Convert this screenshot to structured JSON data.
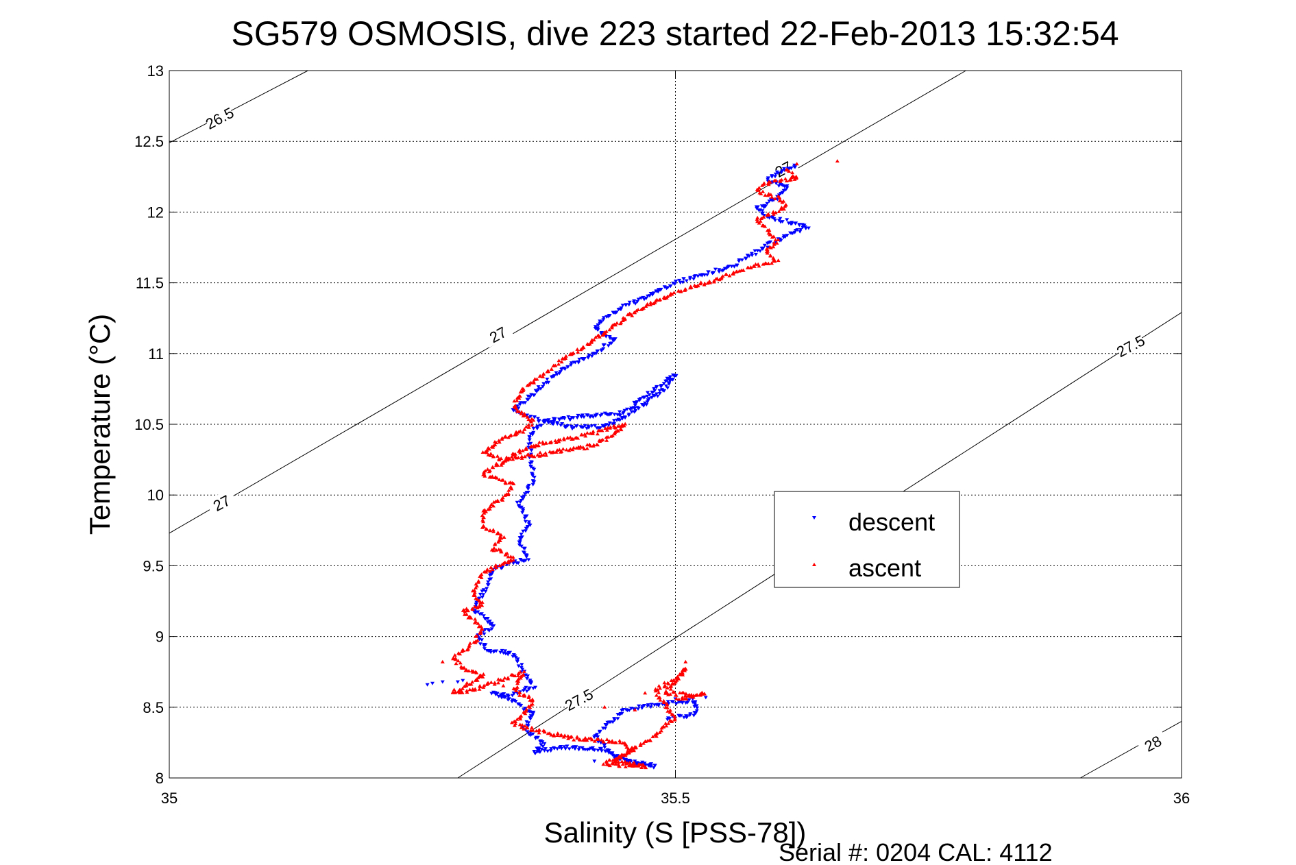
{
  "chart_data": {
    "type": "scatter",
    "title": "SG579 OSMOSIS, dive 223 started 22-Feb-2013 15:32:54",
    "xlabel": "Salinity (S [PSS-78])",
    "ylabel": "Temperature (°C)",
    "xlim": [
      35,
      36
    ],
    "ylim": [
      8,
      13
    ],
    "x_ticks": [
      "35",
      "35.5",
      "36"
    ],
    "y_ticks": [
      "8",
      "8.5",
      "9",
      "9.5",
      "10",
      "10.5",
      "11",
      "11.5",
      "12",
      "12.5",
      "13"
    ],
    "grid": true,
    "legend_position": "right",
    "footer": "Serial #: 0204  CAL: 4112",
    "isopycnals": [
      {
        "label": "26.5",
        "points": [
          [
            35.0,
            12.49
          ],
          [
            35.137,
            13.0
          ]
        ],
        "label_at": [
          35.05,
          12.66
        ],
        "rot": -28
      },
      {
        "label": "27",
        "points": [
          [
            35.0,
            9.73
          ],
          [
            35.787,
            13.0
          ]
        ],
        "label_at": [
          35.052,
          9.94
        ],
        "rot": -28
      },
      {
        "label": "27",
        "points": [
          [
            35.0,
            9.73
          ],
          [
            35.787,
            13.0
          ]
        ],
        "label_at": [
          35.325,
          11.13
        ],
        "rot": -28
      },
      {
        "label": "27",
        "points": [
          [
            35.0,
            9.73
          ],
          [
            35.787,
            13.0
          ]
        ],
        "label_at": [
          35.607,
          12.3
        ],
        "rot": -28
      },
      {
        "label": "27.5",
        "points": [
          [
            35.285,
            8.0
          ],
          [
            36.0,
            11.29
          ]
        ],
        "label_at": [
          35.405,
          8.55
        ],
        "rot": -28
      },
      {
        "label": "27.5",
        "points": [
          [
            35.285,
            8.0
          ],
          [
            36.0,
            11.29
          ]
        ],
        "label_at": [
          35.95,
          11.05
        ],
        "rot": -28
      },
      {
        "label": "28",
        "points": [
          [
            35.9,
            8.0
          ],
          [
            36.0,
            8.4
          ]
        ],
        "label_at": [
          35.972,
          8.24
        ],
        "rot": -28
      }
    ],
    "series": [
      {
        "name": "descent",
        "color": "#0000ff",
        "marker": "triangle-down",
        "path": [
          [
            35.62,
            12.33
          ],
          [
            35.6,
            12.28
          ],
          [
            35.59,
            12.22
          ],
          [
            35.61,
            12.18
          ],
          [
            35.6,
            12.1
          ],
          [
            35.58,
            12.02
          ],
          [
            35.6,
            11.95
          ],
          [
            35.63,
            11.9
          ],
          [
            35.6,
            11.8
          ],
          [
            35.58,
            11.72
          ],
          [
            35.56,
            11.63
          ],
          [
            35.5,
            11.5
          ],
          [
            35.47,
            11.4
          ],
          [
            35.44,
            11.3
          ],
          [
            35.42,
            11.18
          ],
          [
            35.44,
            11.1
          ],
          [
            35.42,
            11.0
          ],
          [
            35.4,
            10.93
          ],
          [
            35.38,
            10.85
          ],
          [
            35.36,
            10.72
          ],
          [
            35.34,
            10.6
          ],
          [
            35.37,
            10.52
          ],
          [
            35.4,
            10.48
          ],
          [
            35.43,
            10.48
          ],
          [
            35.46,
            10.6
          ],
          [
            35.49,
            10.75
          ],
          [
            35.5,
            10.85
          ],
          [
            35.47,
            10.7
          ],
          [
            35.45,
            10.58
          ],
          [
            35.4,
            10.55
          ],
          [
            35.37,
            10.52
          ],
          [
            35.355,
            10.42
          ],
          [
            35.36,
            10.1
          ],
          [
            35.345,
            9.95
          ],
          [
            35.355,
            9.8
          ],
          [
            35.345,
            9.68
          ],
          [
            35.355,
            9.55
          ],
          [
            35.32,
            9.48
          ],
          [
            35.31,
            9.3
          ],
          [
            35.3,
            9.2
          ],
          [
            35.32,
            9.08
          ],
          [
            35.305,
            9.0
          ],
          [
            35.315,
            8.9
          ],
          [
            35.34,
            8.88
          ],
          [
            35.35,
            8.75
          ],
          [
            35.36,
            8.65
          ],
          [
            35.335,
            8.58
          ],
          [
            35.32,
            8.6
          ],
          [
            35.34,
            8.55
          ],
          [
            35.36,
            8.45
          ],
          [
            35.35,
            8.35
          ],
          [
            35.37,
            8.25
          ],
          [
            35.36,
            8.18
          ],
          [
            35.39,
            8.22
          ],
          [
            35.43,
            8.2
          ],
          [
            35.46,
            8.1
          ],
          [
            35.48,
            8.08
          ],
          [
            35.44,
            8.15
          ],
          [
            35.42,
            8.3
          ],
          [
            35.45,
            8.48
          ],
          [
            35.48,
            8.52
          ],
          [
            35.52,
            8.55
          ],
          [
            35.52,
            8.45
          ],
          [
            35.49,
            8.42
          ]
        ],
        "extra_points": [
          [
            35.26,
            8.67
          ],
          [
            35.27,
            8.68
          ],
          [
            35.255,
            8.66
          ],
          [
            35.285,
            8.68
          ],
          [
            35.29,
            8.69
          ],
          [
            35.46,
            8.12
          ],
          [
            35.42,
            8.12
          ],
          [
            35.5,
            8.56
          ],
          [
            35.53,
            8.57
          ]
        ]
      },
      {
        "name": "ascent",
        "color": "#ff0000",
        "marker": "triangle-up",
        "path": [
          [
            35.61,
            12.3
          ],
          [
            35.62,
            12.24
          ],
          [
            35.59,
            12.2
          ],
          [
            35.58,
            12.15
          ],
          [
            35.6,
            12.1
          ],
          [
            35.61,
            12.04
          ],
          [
            35.6,
            12.0
          ],
          [
            35.58,
            11.95
          ],
          [
            35.59,
            11.88
          ],
          [
            35.6,
            11.8
          ],
          [
            35.59,
            11.72
          ],
          [
            35.6,
            11.65
          ],
          [
            35.57,
            11.6
          ],
          [
            35.54,
            11.52
          ],
          [
            35.5,
            11.43
          ],
          [
            35.46,
            11.3
          ],
          [
            35.43,
            11.15
          ],
          [
            35.41,
            11.05
          ],
          [
            35.39,
            10.97
          ],
          [
            35.37,
            10.85
          ],
          [
            35.35,
            10.75
          ],
          [
            35.34,
            10.62
          ],
          [
            35.36,
            10.52
          ],
          [
            35.35,
            10.45
          ],
          [
            35.33,
            10.4
          ],
          [
            35.31,
            10.3
          ],
          [
            35.33,
            10.25
          ],
          [
            35.38,
            10.3
          ],
          [
            35.42,
            10.35
          ],
          [
            35.44,
            10.43
          ],
          [
            35.45,
            10.5
          ],
          [
            35.41,
            10.42
          ],
          [
            35.36,
            10.35
          ],
          [
            35.34,
            10.28
          ],
          [
            35.31,
            10.15
          ],
          [
            35.34,
            10.07
          ],
          [
            35.33,
            9.98
          ],
          [
            35.31,
            9.88
          ],
          [
            35.31,
            9.78
          ],
          [
            35.33,
            9.7
          ],
          [
            35.32,
            9.62
          ],
          [
            35.34,
            9.55
          ],
          [
            35.31,
            9.45
          ],
          [
            35.3,
            9.3
          ],
          [
            35.31,
            9.22
          ],
          [
            35.29,
            9.18
          ],
          [
            35.31,
            9.05
          ],
          [
            35.3,
            8.95
          ],
          [
            35.28,
            8.85
          ],
          [
            35.29,
            8.78
          ],
          [
            35.31,
            8.72
          ],
          [
            35.28,
            8.6
          ],
          [
            35.3,
            8.62
          ],
          [
            35.33,
            8.7
          ],
          [
            35.35,
            8.75
          ],
          [
            35.34,
            8.62
          ],
          [
            35.36,
            8.55
          ],
          [
            35.35,
            8.45
          ],
          [
            35.34,
            8.38
          ],
          [
            35.37,
            8.32
          ],
          [
            35.4,
            8.28
          ],
          [
            35.44,
            8.26
          ],
          [
            35.46,
            8.2
          ],
          [
            35.43,
            8.1
          ],
          [
            35.45,
            8.09
          ],
          [
            35.47,
            8.08
          ],
          [
            35.44,
            8.12
          ],
          [
            35.48,
            8.3
          ],
          [
            35.5,
            8.42
          ],
          [
            35.49,
            8.52
          ],
          [
            35.48,
            8.62
          ],
          [
            35.5,
            8.7
          ],
          [
            35.51,
            8.78
          ],
          [
            35.5,
            8.68
          ],
          [
            35.49,
            8.6
          ],
          [
            35.52,
            8.58
          ],
          [
            35.53,
            8.6
          ],
          [
            35.5,
            8.55
          ]
        ],
        "extra_points": [
          [
            35.27,
            8.82
          ],
          [
            35.33,
            8.65
          ],
          [
            35.38,
            8.3
          ],
          [
            35.47,
            8.6
          ],
          [
            35.51,
            8.82
          ],
          [
            35.66,
            12.36
          ],
          [
            35.62,
            12.34
          ],
          [
            35.43,
            8.5
          ],
          [
            35.46,
            8.48
          ]
        ]
      }
    ]
  }
}
